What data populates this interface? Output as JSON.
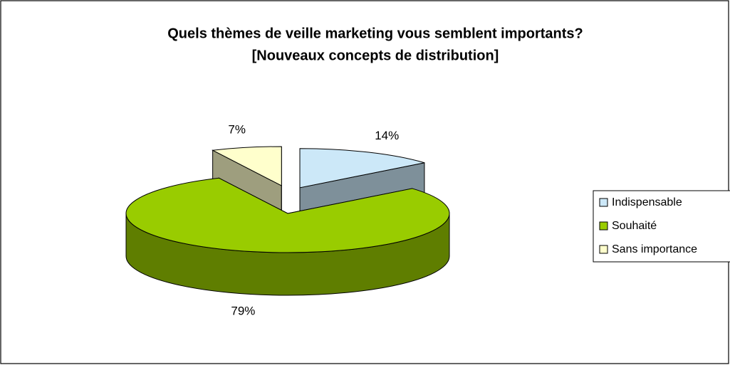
{
  "chart_data": {
    "type": "pie3d",
    "title": [
      "Quels thèmes de veille marketing vous semblent importants?",
      "[Nouveaux concepts de distribution]"
    ],
    "categories": [
      "Indispensable",
      "Souhaité",
      "Sans importance"
    ],
    "values": [
      14,
      79,
      7
    ],
    "value_labels": [
      "14%",
      "79%",
      "7%"
    ],
    "colors": [
      "#cce8f8",
      "#99cc00",
      "#ffffcc"
    ],
    "legend": "right"
  }
}
